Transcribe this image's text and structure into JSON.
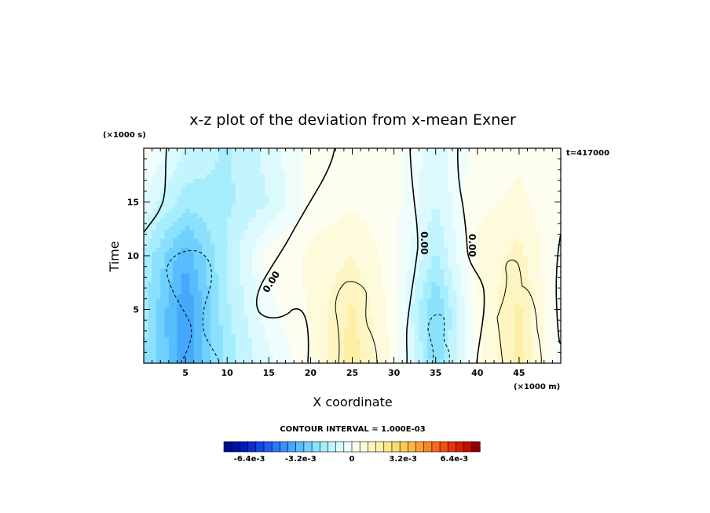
{
  "chart_data": {
    "type": "heatmap",
    "title": "x-z plot of the deviation from x-mean Exner",
    "xlabel": "X coordinate",
    "ylabel": "Time",
    "x_unit": "(×1000 m)",
    "y_unit": "(×1000 s)",
    "time_label": "t=417000",
    "xlim": [
      0,
      50
    ],
    "ylim": [
      0,
      20
    ],
    "x_ticks": [
      5,
      10,
      15,
      20,
      25,
      30,
      35,
      40,
      45
    ],
    "y_ticks": [
      5,
      10,
      15
    ],
    "contour_interval_text": "CONTOUR INTERVAL = 1.000E-03",
    "contour_labels": [
      "0.00",
      "0.00",
      "0.00"
    ],
    "colorbar": {
      "min": -0.008,
      "max": 0.008,
      "tick_values": [
        -0.0064,
        -0.0032,
        0,
        0.0032,
        0.0064
      ],
      "tick_labels": [
        "-6.4e-3",
        "-3.2e-3",
        "0",
        "3.2e-3",
        "6.4e-3"
      ],
      "colors": [
        "#000a8c",
        "#0012a5",
        "#001cbe",
        "#0a2ed4",
        "#1446e6",
        "#1f5ff0",
        "#2a78f6",
        "#3590fa",
        "#45a8fc",
        "#58bdfd",
        "#6fd0fd",
        "#8ae0fd",
        "#a6edfd",
        "#c2f5fd",
        "#dcfafd",
        "#f0fdfd",
        "#fdfdf0",
        "#fdfbdc",
        "#fdf6c2",
        "#fdefa5",
        "#fde68a",
        "#fdd96f",
        "#fdc858",
        "#fdb445",
        "#fc9d35",
        "#fa842a",
        "#f66a1f",
        "#f04f14",
        "#e6350a",
        "#d41f00",
        "#be0f00",
        "#8c0000"
      ]
    },
    "field_samples": {
      "x": [
        0,
        5,
        10,
        15,
        20,
        25,
        30,
        35,
        40,
        45,
        50
      ],
      "y": [
        0,
        5,
        10,
        15,
        20
      ],
      "z": [
        [
          -0.002,
          -0.0038,
          -0.0018,
          -0.0006,
          0.0004,
          0.0018,
          0.0004,
          -0.0024,
          0.0004,
          0.0016,
          -0.0002
        ],
        [
          -0.0018,
          -0.004,
          -0.0016,
          -0.0002,
          0.0006,
          0.0016,
          0.0002,
          -0.0026,
          0.0004,
          0.0016,
          -0.0002
        ],
        [
          -0.0016,
          -0.0034,
          -0.0014,
          0.0002,
          0.0006,
          0.001,
          0.0002,
          -0.0016,
          0.0006,
          0.0012,
          -0.0002
        ],
        [
          -0.0006,
          -0.0018,
          -0.0016,
          -0.001,
          0.0002,
          0.0004,
          0.0002,
          -0.001,
          0.0004,
          0.0006,
          0.0002
        ],
        [
          0.0002,
          -0.001,
          -0.0016,
          -0.0008,
          0.0002,
          0.0002,
          0.0002,
          -0.0008,
          0.0002,
          0.0004,
          0.0002
        ]
      ]
    }
  }
}
